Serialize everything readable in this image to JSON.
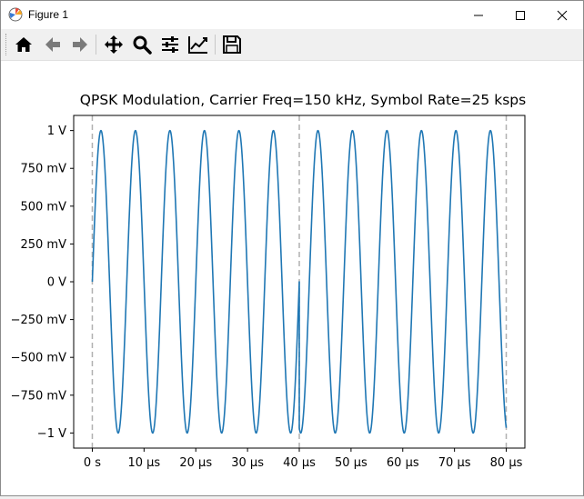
{
  "window": {
    "title": "Figure 1"
  },
  "toolbar": {
    "buttons": [
      {
        "name": "home-button",
        "icon": "home-icon"
      },
      {
        "name": "back-button",
        "icon": "arrow-left-icon"
      },
      {
        "name": "forward-button",
        "icon": "arrow-right-icon"
      },
      {
        "name": "pan-button",
        "icon": "move-icon"
      },
      {
        "name": "zoom-button",
        "icon": "magnifier-icon"
      },
      {
        "name": "configure-subplots-button",
        "icon": "sliders-icon"
      },
      {
        "name": "edit-axes-button",
        "icon": "chart-line-icon"
      },
      {
        "name": "save-button",
        "icon": "floppy-disk-icon"
      }
    ]
  },
  "chart_data": {
    "type": "line",
    "title": "QPSK Modulation, Carrier Freq=150 kHz, Symbol Rate=25 ksps",
    "xlabel": "",
    "ylabel": "",
    "x_unit": "µs",
    "y_unit": "V",
    "xlim": [
      -3.6,
      83.6
    ],
    "ylim": [
      -1.1,
      1.1
    ],
    "x_ticks": [
      0,
      10,
      20,
      30,
      40,
      50,
      60,
      70,
      80
    ],
    "x_tick_labels": [
      "0 s",
      "10 µs",
      "20 µs",
      "30 µs",
      "40 µs",
      "50 µs",
      "60 µs",
      "70 µs",
      "80 µs"
    ],
    "y_ticks": [
      1,
      0.75,
      0.5,
      0.25,
      0,
      -0.25,
      -0.5,
      -0.75,
      -1
    ],
    "y_tick_labels": [
      "1 V",
      "750 mV",
      "500 mV",
      "250 mV",
      "0 V",
      "−250 mV",
      "−500 mV",
      "−750 mV",
      "−1 V"
    ],
    "grid": false,
    "symbol_boundaries": [
      0,
      40,
      80
    ],
    "series": [
      {
        "color": "#1f77b4",
        "carrier_freq_khz": 150,
        "amplitude": 1,
        "segments": [
          {
            "t_start_us": 0,
            "t_end_us": 40,
            "phase_deg": 0
          },
          {
            "t_start_us": 40,
            "t_end_us": 80,
            "phase_deg": -105
          }
        ]
      }
    ],
    "boundary_line_color": "#b0b0b0"
  }
}
